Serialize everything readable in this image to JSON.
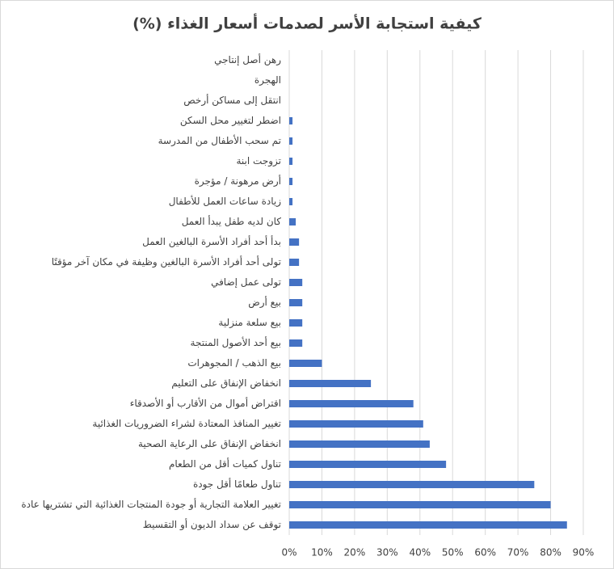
{
  "chart_data": {
    "type": "hbar",
    "title": "كيفية استجابة الأسر لصدمات أسعار الغذاء (%)",
    "categories": [
      "رهن أصل إنتاجي",
      "الهجرة",
      "انتقل إلى مساكن أرخص",
      "اضطر لتغيير محل السكن",
      "تم سحب الأطفال من المدرسة",
      "تزوجت ابنة",
      "أرض مرهونة / مؤجرة",
      "زيادة ساعات العمل للأطفال",
      "كان لديه طفل يبدأ العمل",
      "بدأ أحد أفراد الأسرة البالغين العمل",
      "تولى أحد أفراد الأسرة البالغين وظيفة في مكان آخر مؤقتًا",
      "تولى عمل إضافي",
      "بيع أرض",
      "بيع سلعة منزلية",
      "بيع أحد الأصول المنتجة",
      "بيع الذهب / المجوهرات",
      "انخفاض الإنفاق على التعليم",
      "اقتراض أموال من الأقارب أو الأصدقاء",
      "تغيير المنافذ المعتادة لشراء الضروريات الغذائية",
      "انخفاض الإنفاق على الرعاية الصحية",
      "تناول كميات أقل من الطعام",
      "تناول طعامًا أقل جودة",
      "تغيير العلامة التجارية أو جودة المنتجات الغذائية التي تشتريها عادة",
      "توقف عن سداد الديون أو التقسيط"
    ],
    "values": [
      0,
      0,
      0,
      1,
      1,
      1,
      1,
      1,
      2,
      3,
      3,
      4,
      4,
      4,
      4,
      10,
      25,
      38,
      41,
      43,
      48,
      75,
      80,
      85
    ],
    "color": "#4472c4",
    "xlim": [
      0,
      90
    ],
    "xticks": [
      {
        "value": 0,
        "label": "0%"
      },
      {
        "value": 10,
        "label": "10%"
      },
      {
        "value": 20,
        "label": "20%"
      },
      {
        "value": 30,
        "label": "30%"
      },
      {
        "value": 40,
        "label": "40%"
      },
      {
        "value": 50,
        "label": "50%"
      },
      {
        "value": 60,
        "label": "60%"
      },
      {
        "value": 70,
        "label": "70%"
      },
      {
        "value": 80,
        "label": "80%"
      },
      {
        "value": 90,
        "label": "90%"
      }
    ],
    "grid": true
  }
}
